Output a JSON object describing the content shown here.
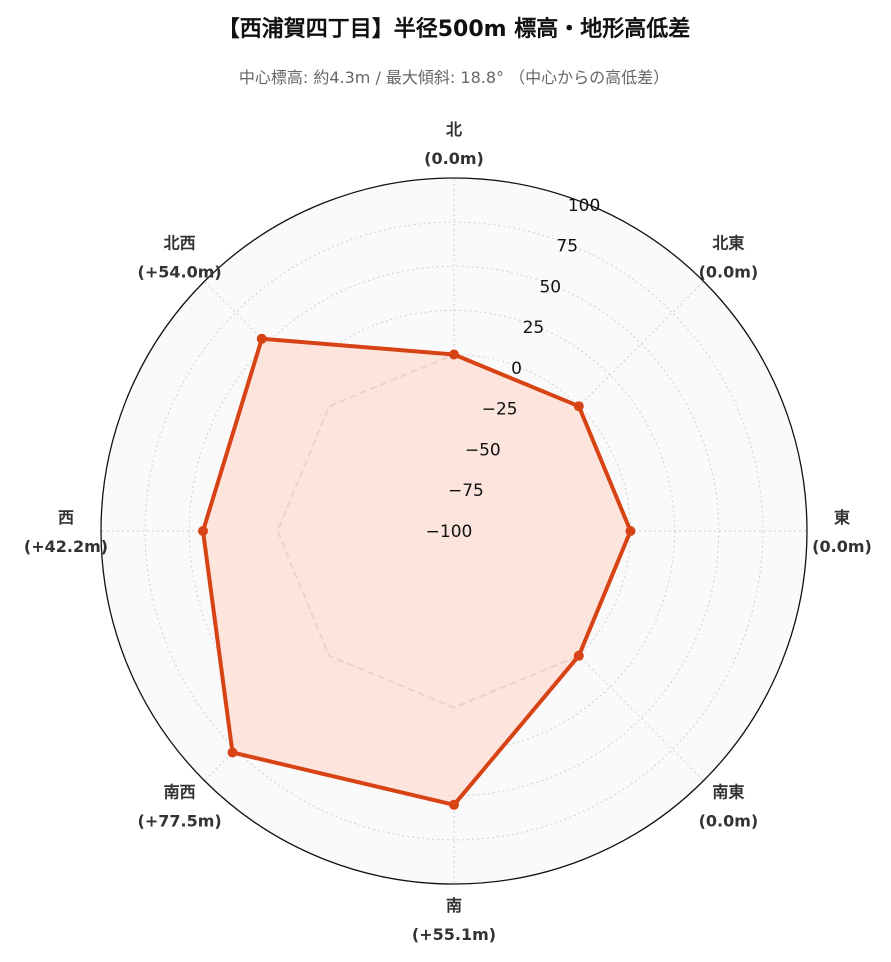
{
  "chart_data": {
    "type": "radar",
    "title": "【西浦賀四丁目】半径500m 標高・地形高低差",
    "subtitle": "中心標高: 約4.3m / 最大傾斜: 18.8° （中心からの高低差）",
    "categories": [
      "北",
      "北東",
      "東",
      "南東",
      "南",
      "南西",
      "西",
      "北西"
    ],
    "category_values_text": [
      "(0.0m)",
      "(0.0m)",
      "(0.0m)",
      "(0.0m)",
      "(+55.1m)",
      "(+77.5m)",
      "(+42.2m)",
      "(+54.0m)"
    ],
    "values": [
      0.0,
      0.0,
      0.0,
      0.0,
      55.1,
      77.5,
      42.2,
      54.0
    ],
    "reference_level": 0,
    "rlim": [
      -100,
      100
    ],
    "rticks": [
      -100,
      -75,
      -50,
      -25,
      0,
      25,
      50,
      75,
      100
    ],
    "rtick_labels": [
      "−100",
      "−75",
      "−50",
      "−25",
      "0",
      "25",
      "50",
      "75",
      "100"
    ],
    "grid": true,
    "colors": {
      "line": "#d84315",
      "fill": "#fde0d8",
      "reference": "#888888",
      "background": "#fafafa",
      "grid": "#d0d0d0"
    }
  }
}
